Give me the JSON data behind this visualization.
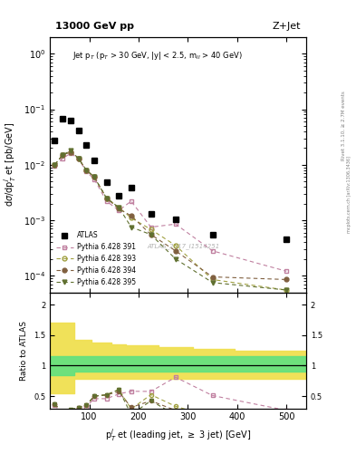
{
  "title_top": "13000 GeV pp",
  "title_right": "Z+Jet",
  "annotation": "Jet p$_T$ (p$_T$ > 30 GeV, |y| < 2.5, m$_{ll}$ > 40 GeV)",
  "watermark": "ATLAS_2017_I1514251",
  "rivet_label": "Rivet 3.1.10, ≥ 2.7M events",
  "arxiv_label": "mcplots.cern.ch [arXiv:1306.3436]",
  "ylabel_main": "dσ/dp$_T^j$ et [pb/GeV]",
  "ylabel_ratio": "Ratio to ATLAS",
  "xlabel": "p$_T^j$ et (leading jet, ≥ 3 jet) [GeV]",
  "atlas_x": [
    30,
    46,
    62,
    78,
    94,
    110,
    135,
    160,
    185,
    225,
    275,
    350,
    500
  ],
  "atlas_y": [
    0.027,
    0.067,
    0.063,
    0.042,
    0.023,
    0.012,
    0.0048,
    0.0028,
    0.0038,
    0.0013,
    0.00105,
    0.00055,
    0.00045
  ],
  "py391_x": [
    30,
    46,
    62,
    78,
    94,
    110,
    135,
    160,
    185,
    225,
    275,
    350,
    500
  ],
  "py391_y": [
    0.0095,
    0.013,
    0.016,
    0.013,
    0.0075,
    0.0055,
    0.0022,
    0.0015,
    0.0022,
    0.00075,
    0.00085,
    0.00028,
    0.00012
  ],
  "py393_x": [
    30,
    46,
    62,
    78,
    94,
    110,
    135,
    160,
    185,
    225,
    275,
    350,
    500
  ],
  "py393_y": [
    0.01,
    0.015,
    0.017,
    0.013,
    0.008,
    0.006,
    0.0025,
    0.0017,
    0.0011,
    0.00068,
    0.00035,
    8.5e-05,
    5.5e-05
  ],
  "py394_x": [
    30,
    46,
    62,
    78,
    94,
    110,
    135,
    160,
    185,
    225,
    275,
    350,
    500
  ],
  "py394_y": [
    0.01,
    0.015,
    0.017,
    0.013,
    0.008,
    0.006,
    0.0025,
    0.0016,
    0.0012,
    0.00055,
    0.00028,
    9.5e-05,
    8.5e-05
  ],
  "py395_x": [
    30,
    46,
    62,
    78,
    94,
    110,
    135,
    160,
    185,
    225,
    275,
    350,
    500
  ],
  "py395_y": [
    0.01,
    0.015,
    0.018,
    0.013,
    0.008,
    0.006,
    0.0025,
    0.0017,
    0.00075,
    0.00055,
    0.0002,
    7.5e-05,
    5.5e-05
  ],
  "color_391": "#c080a0",
  "color_393": "#a0a040",
  "color_394": "#806040",
  "color_395": "#607030",
  "band_x": [
    20,
    55,
    70,
    105,
    145,
    175,
    240,
    310,
    395,
    540
  ],
  "green_lo": [
    0.85,
    0.85,
    0.9,
    0.9,
    0.9,
    0.9,
    0.9,
    0.9,
    0.9,
    0.9
  ],
  "green_hi": [
    1.15,
    1.15,
    1.15,
    1.15,
    1.15,
    1.15,
    1.15,
    1.15,
    1.15,
    1.15
  ],
  "yellow_lo": [
    0.55,
    0.55,
    0.78,
    0.78,
    0.78,
    0.78,
    0.78,
    0.78,
    0.78,
    0.78
  ],
  "yellow_hi": [
    1.7,
    1.7,
    1.42,
    1.38,
    1.35,
    1.33,
    1.3,
    1.27,
    1.24,
    1.22
  ],
  "xlim": [
    20,
    540
  ],
  "ylim_main": [
    5e-05,
    2.0
  ],
  "ylim_ratio": [
    0.3,
    2.2
  ]
}
